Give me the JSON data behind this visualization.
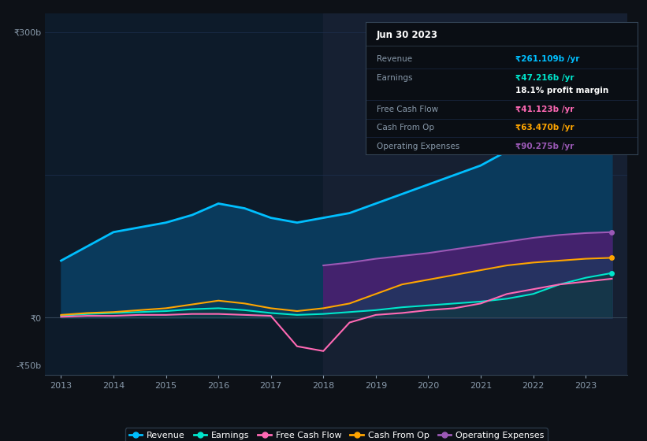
{
  "bg_color": "#0d1117",
  "plot_bg_color": "#0d1b2a",
  "highlight_bg": "#162032",
  "grid_color": "#1e3050",
  "text_color": "#8899aa",
  "title_color": "#ffffff",
  "years_x": [
    2013,
    2013.5,
    2014,
    2014.5,
    2015,
    2015.5,
    2016,
    2016.5,
    2017,
    2017.5,
    2018,
    2018.5,
    2019,
    2019.5,
    2020,
    2020.5,
    2021,
    2021.5,
    2022,
    2022.5,
    2023,
    2023.5
  ],
  "revenue": [
    60,
    75,
    90,
    95,
    100,
    108,
    120,
    115,
    105,
    100,
    105,
    110,
    120,
    130,
    140,
    150,
    160,
    175,
    195,
    220,
    250,
    261
  ],
  "earnings": [
    2,
    4,
    5,
    6,
    7,
    9,
    10,
    8,
    5,
    3,
    4,
    6,
    8,
    11,
    13,
    15,
    17,
    20,
    25,
    35,
    42,
    47
  ],
  "free_cash_flow": [
    1,
    2,
    2,
    3,
    3,
    4,
    4,
    3,
    2,
    -30,
    -35,
    -5,
    3,
    5,
    8,
    10,
    15,
    25,
    30,
    35,
    38,
    41
  ],
  "cash_from_op": [
    3,
    5,
    6,
    8,
    10,
    14,
    18,
    15,
    10,
    7,
    10,
    15,
    25,
    35,
    40,
    45,
    50,
    55,
    58,
    60,
    62,
    63
  ],
  "op_expenses": [
    null,
    null,
    null,
    null,
    null,
    null,
    null,
    null,
    null,
    null,
    55,
    58,
    62,
    65,
    68,
    72,
    76,
    80,
    84,
    87,
    89,
    90
  ],
  "highlight_start": 2018,
  "xmin": 2012.7,
  "xmax": 2023.8,
  "ymin": -60,
  "ymax": 320,
  "revenue_color": "#00bfff",
  "earnings_color": "#00e6cc",
  "fcf_color": "#ff69b4",
  "cfop_color": "#ffa500",
  "opex_color": "#9b59b6",
  "revenue_fill": "#0a3a5c",
  "opex_fill": "#4a2070",
  "tooltip_title": "Jun 30 2023",
  "tooltip_revenue": "₹261.109b /yr",
  "tooltip_earnings": "₹47.216b /yr",
  "tooltip_margin": "18.1% profit margin",
  "tooltip_fcf": "₹41.123b /yr",
  "tooltip_cfop": "₹63.470b /yr",
  "tooltip_opex": "₹90.275b /yr",
  "legend_labels": [
    "Revenue",
    "Earnings",
    "Free Cash Flow",
    "Cash From Op",
    "Operating Expenses"
  ],
  "legend_colors": [
    "#00bfff",
    "#00e6cc",
    "#ff69b4",
    "#ffa500",
    "#9b59b6"
  ]
}
